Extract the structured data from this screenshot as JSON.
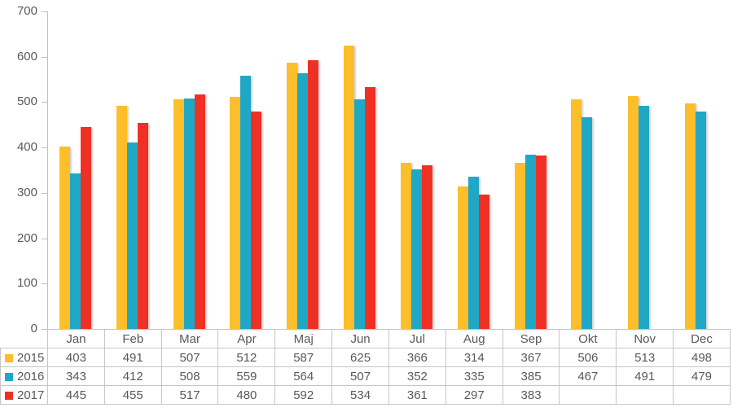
{
  "chart_data": {
    "type": "bar",
    "title": "",
    "xlabel": "",
    "ylabel": "",
    "categories": [
      "Jan",
      "Feb",
      "Mar",
      "Apr",
      "Maj",
      "Jun",
      "Jul",
      "Aug",
      "Sep",
      "Okt",
      "Nov",
      "Dec"
    ],
    "series": [
      {
        "name": "2015",
        "color": "#FCBE2B",
        "values": [
          403,
          491,
          507,
          512,
          587,
          625,
          366,
          314,
          367,
          506,
          513,
          498
        ]
      },
      {
        "name": "2016",
        "color": "#21A7C6",
        "values": [
          343,
          412,
          508,
          559,
          564,
          507,
          352,
          335,
          385,
          467,
          491,
          479
        ]
      },
      {
        "name": "2017",
        "color": "#EE3124",
        "values": [
          445,
          455,
          517,
          480,
          592,
          534,
          361,
          297,
          383,
          null,
          null,
          null
        ]
      }
    ],
    "ylim": [
      0,
      700
    ],
    "yticks": [
      0,
      100,
      200,
      300,
      400,
      500,
      600,
      700
    ],
    "grid": false,
    "legend_position": "table-rows-left"
  },
  "colors": {
    "background": "#FFFFFF",
    "axis": "#BFBFBF",
    "table_border": "#C6C6C6",
    "text": "#595959",
    "series_2015": "#FCBE2B",
    "series_2016": "#21A7C6",
    "series_2017": "#EE3124"
  }
}
